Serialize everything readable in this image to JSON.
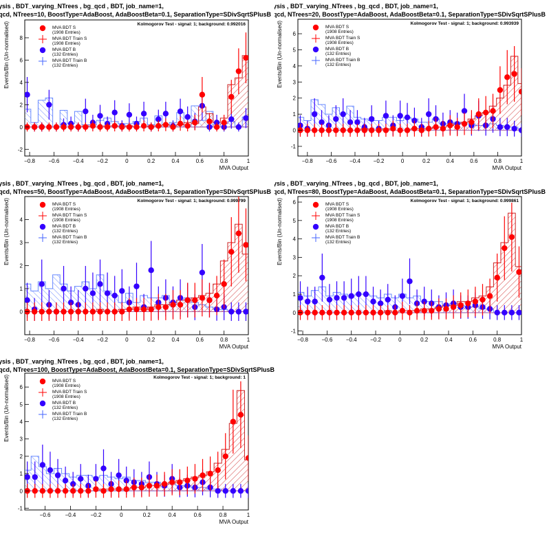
{
  "window": {
    "title_line1": "ysis ,  BDT_varying_NTrees ,  bg_qcd ,  BDT, job_name=1,",
    "title_line2_prefix": "qcd, NTrees=",
    "title_line2_suffix": ", BoostType=AdaBoost, AdaBoostBeta=0.1, SeparationType=SDivSqrtSPlusB"
  },
  "legend": {
    "items": [
      {
        "label": "MVA BDT S",
        "entries": "(1908 Entries)",
        "style": "dot",
        "color": "#ff0000"
      },
      {
        "label": "MVA BDT Train S",
        "entries": "(1908 Entries)",
        "style": "cross",
        "color": "#ff0000"
      },
      {
        "label": "MVA BDT B",
        "entries": "(132 Entries)",
        "style": "dot",
        "color": "#3300ff"
      },
      {
        "label": "MVA BDT Train B",
        "entries": "(132 Entries)",
        "style": "cross",
        "color": "#4466ff"
      }
    ]
  },
  "colors": {
    "signal": "#ff0000",
    "background": "#3300ff",
    "train_background": "#6688ff",
    "hatch_signal": "#cc2222",
    "hatch_background": "#5577ff"
  },
  "axis_labels": {
    "x": "MVA Output",
    "y": "Events/Bin (Un-normalised)"
  },
  "chart_data": [
    {
      "type": "histogram",
      "ntrees": "10",
      "ks_text": "Kolmogorov Test - signal: 1; background: 0.992016",
      "xlim": [
        -0.84,
        1.0
      ],
      "ylim": [
        -2.6,
        9.6
      ],
      "xticks": [
        -0.8,
        -0.6,
        -0.4,
        -0.2,
        0,
        0.2,
        0.4,
        0.6,
        0.8,
        1
      ],
      "yticks": [
        -2,
        0,
        2,
        4,
        6,
        8
      ],
      "x": [
        -0.82,
        -0.76,
        -0.7,
        -0.64,
        -0.58,
        -0.52,
        -0.46,
        -0.4,
        -0.34,
        -0.28,
        -0.22,
        -0.16,
        -0.1,
        -0.04,
        0.02,
        0.08,
        0.14,
        0.2,
        0.26,
        0.32,
        0.38,
        0.44,
        0.5,
        0.56,
        0.62,
        0.68,
        0.74,
        0.8,
        0.86,
        0.92,
        0.98
      ],
      "series": [
        {
          "name": "MVA BDT S",
          "values": [
            0,
            0,
            0,
            0,
            0,
            0,
            0,
            0,
            0,
            0.1,
            0,
            0,
            0.1,
            0,
            0,
            0,
            0.1,
            0,
            0.1,
            0.2,
            0,
            0.3,
            0.1,
            0.4,
            2.9,
            0.5,
            0,
            0.4,
            2.7,
            5.0,
            6.2
          ]
        },
        {
          "name": "MVA BDT B",
          "values": [
            2.9,
            0,
            0,
            2.0,
            0,
            0.2,
            0.3,
            0,
            1.4,
            0.4,
            1.0,
            0.3,
            1.3,
            0.1,
            1.1,
            0.3,
            1.2,
            0,
            0.7,
            1.2,
            0.1,
            1.4,
            0.9,
            0.5,
            1.9,
            0,
            0.4,
            0,
            0.7,
            0,
            0.8
          ]
        },
        {
          "name": "MVA BDT Train S",
          "values": [
            0,
            0,
            0,
            0,
            0,
            0,
            0,
            0,
            0.1,
            0,
            0,
            0.1,
            0.1,
            0,
            0.1,
            0,
            0,
            0.1,
            0.1,
            0.2,
            0.1,
            0.2,
            0.4,
            0.3,
            1.8,
            1.2,
            0.4,
            0.8,
            3.8,
            4.4,
            6.4
          ]
        },
        {
          "name": "MVA BDT Train B",
          "values": [
            1.6,
            0.4,
            2.4,
            2.6,
            0,
            1.5,
            0.3,
            1.4,
            0.2,
            0.2,
            0.6,
            0.8,
            0.5,
            0.3,
            0.3,
            0.5,
            0.8,
            0.2,
            1.0,
            0.2,
            0.4,
            1.3,
            0.1,
            1.9,
            0.6,
            1.4,
            0,
            0.3,
            0.5,
            0,
            0.9
          ]
        }
      ]
    },
    {
      "type": "histogram",
      "ntrees": "20",
      "ks_text": "Kolmogorov Test - signal: 1; background: 0.993939",
      "xlim": [
        -0.88,
        1.0
      ],
      "ylim": [
        -1.6,
        6.9
      ],
      "xticks": [
        -0.8,
        -0.6,
        -0.4,
        -0.2,
        0,
        0.2,
        0.4,
        0.6,
        0.8,
        1
      ],
      "yticks": [
        -1,
        0,
        1,
        2,
        3,
        4,
        5,
        6
      ],
      "x": [
        -0.86,
        -0.8,
        -0.74,
        -0.68,
        -0.62,
        -0.56,
        -0.5,
        -0.44,
        -0.38,
        -0.32,
        -0.26,
        -0.2,
        -0.14,
        -0.08,
        -0.02,
        0.04,
        0.1,
        0.16,
        0.22,
        0.28,
        0.34,
        0.4,
        0.46,
        0.52,
        0.58,
        0.64,
        0.7,
        0.76,
        0.82,
        0.88,
        0.94,
        1.0
      ],
      "series": [
        {
          "name": "MVA BDT S",
          "values": [
            0,
            0,
            0,
            0,
            0,
            0,
            0,
            0,
            0,
            0,
            0,
            0,
            0,
            0.1,
            0,
            0,
            0.1,
            0,
            0.1,
            0.2,
            0.1,
            0.3,
            0.2,
            0.4,
            0.5,
            1.0,
            1.1,
            1.2,
            2.5,
            3.3,
            3.5,
            2.4
          ]
        },
        {
          "name": "MVA BDT B",
          "values": [
            0.3,
            0.1,
            1.0,
            0.5,
            0.3,
            0.7,
            1.0,
            0.5,
            0.5,
            0.2,
            0.7,
            0.1,
            0.9,
            0.3,
            0.9,
            0.8,
            0.6,
            0.2,
            1.0,
            0.7,
            0.4,
            0.5,
            0.4,
            1.2,
            0.3,
            0.9,
            0.3,
            0.7,
            0.2,
            0.2,
            0.1,
            0
          ]
        },
        {
          "name": "MVA BDT Train S",
          "values": [
            0,
            0,
            0,
            0,
            0,
            0,
            0,
            0,
            0,
            0.1,
            0,
            0,
            0.1,
            0,
            0,
            0,
            0.1,
            0.1,
            0.1,
            0.2,
            0.2,
            0.3,
            0.4,
            0.5,
            0.7,
            0.9,
            1.1,
            1.5,
            2.0,
            2.8,
            4.6,
            2.9
          ]
        },
        {
          "name": "MVA BDT Train B",
          "values": [
            0.8,
            0.6,
            1.9,
            1.6,
            1.0,
            1.4,
            1.0,
            1.5,
            0.8,
            0.7,
            0.6,
            0.6,
            0.8,
            0.8,
            0.6,
            0.8,
            0.7,
            0.5,
            0.5,
            0.7,
            0.4,
            0.4,
            0.5,
            0.4,
            0.4,
            0.3,
            0.3,
            0.4,
            0.3,
            0.2,
            0.2,
            0.1
          ]
        }
      ]
    },
    {
      "type": "histogram",
      "ntrees": "50",
      "ks_text": "Kolmogorov Test - signal: 1; background: 0.999799",
      "xlim": [
        -0.84,
        1.0
      ],
      "ylim": [
        -1.0,
        5.0
      ],
      "xticks": [
        -0.8,
        -0.6,
        -0.4,
        -0.2,
        0,
        0.2,
        0.4,
        0.6,
        0.8,
        1
      ],
      "yticks": [
        0,
        1,
        2,
        3,
        4
      ],
      "x": [
        -0.82,
        -0.76,
        -0.7,
        -0.64,
        -0.58,
        -0.52,
        -0.46,
        -0.4,
        -0.34,
        -0.28,
        -0.22,
        -0.16,
        -0.1,
        -0.04,
        0.02,
        0.08,
        0.14,
        0.2,
        0.26,
        0.32,
        0.38,
        0.44,
        0.5,
        0.56,
        0.62,
        0.68,
        0.74,
        0.8,
        0.86,
        0.92,
        0.98
      ],
      "series": [
        {
          "name": "MVA BDT S",
          "values": [
            0,
            0,
            0,
            0,
            0,
            0,
            0,
            0,
            0,
            0,
            0,
            0,
            0,
            0,
            0.1,
            0.1,
            0.1,
            0.1,
            0.2,
            0.2,
            0.3,
            0.3,
            0.5,
            0.5,
            0.6,
            0.5,
            0.7,
            1.2,
            2.6,
            3.4,
            2.9
          ]
        },
        {
          "name": "MVA BDT B",
          "values": [
            0.5,
            0.1,
            1.2,
            0.3,
            0,
            1.0,
            0.4,
            0.3,
            1.0,
            0.8,
            1.2,
            0.8,
            0.7,
            0.9,
            0.4,
            1.1,
            0.2,
            1.8,
            0.4,
            0.6,
            0.4,
            0.6,
            0.5,
            0.2,
            1.7,
            0.5,
            0.1,
            0.2,
            0,
            0,
            0
          ]
        },
        {
          "name": "MVA BDT Train S",
          "values": [
            0,
            0,
            0,
            0,
            0,
            0,
            0,
            0,
            0,
            0,
            0.1,
            0,
            0,
            0.1,
            0.1,
            0.2,
            0.1,
            0.2,
            0.3,
            0.3,
            0.4,
            0.5,
            0.5,
            0.6,
            0.7,
            0.8,
            1.2,
            2.2,
            3.0,
            3.8,
            2.5
          ]
        },
        {
          "name": "MVA BDT Train B",
          "values": [
            1.2,
            0.9,
            1.3,
            1.0,
            1.6,
            1.2,
            0.9,
            1.1,
            1.3,
            1.0,
            1.6,
            0.9,
            0.7,
            0.4,
            0.8,
            0.4,
            0.7,
            0.6,
            0.6,
            0.7,
            0.3,
            0.5,
            0.6,
            0.4,
            0.3,
            0.2,
            0.1,
            0.1,
            0,
            0,
            0
          ]
        }
      ]
    },
    {
      "type": "histogram",
      "ntrees": "80",
      "ks_text": "Kolmogorov Test - signal: 1; background: 0.999861",
      "xlim": [
        -0.84,
        1.0
      ],
      "ylim": [
        -1.2,
        6.3
      ],
      "xticks": [
        -0.8,
        -0.6,
        -0.4,
        -0.2,
        0,
        0.2,
        0.4,
        0.6,
        0.8,
        1
      ],
      "yticks": [
        -1,
        0,
        1,
        2,
        3,
        4,
        5,
        6
      ],
      "x": [
        -0.82,
        -0.76,
        -0.7,
        -0.64,
        -0.58,
        -0.52,
        -0.46,
        -0.4,
        -0.34,
        -0.28,
        -0.22,
        -0.16,
        -0.1,
        -0.04,
        0.02,
        0.08,
        0.14,
        0.2,
        0.26,
        0.32,
        0.38,
        0.44,
        0.5,
        0.56,
        0.62,
        0.68,
        0.74,
        0.8,
        0.86,
        0.92,
        0.98
      ],
      "series": [
        {
          "name": "MVA BDT S",
          "values": [
            0,
            0,
            0,
            0,
            0,
            0,
            0,
            0,
            0,
            0,
            0,
            0,
            0,
            0,
            0.1,
            0,
            0.1,
            0.1,
            0.1,
            0.2,
            0.2,
            0.3,
            0.4,
            0.5,
            0.6,
            0.7,
            0.9,
            1.9,
            3.5,
            4.1,
            2.2
          ]
        },
        {
          "name": "MVA BDT B",
          "values": [
            0.8,
            0.6,
            0.6,
            1.9,
            0.7,
            0.8,
            0.8,
            0.9,
            1.0,
            1.0,
            0.6,
            0.5,
            0.7,
            0.3,
            0.9,
            1.7,
            0.5,
            0.6,
            0.5,
            0.3,
            0.4,
            0.5,
            0.3,
            0.3,
            0.4,
            0.3,
            0.2,
            0,
            0,
            0,
            0
          ]
        },
        {
          "name": "MVA BDT Train S",
          "values": [
            0,
            0,
            0,
            0,
            0,
            0,
            0,
            0,
            0,
            0,
            0,
            0,
            0.1,
            0,
            0.1,
            0.1,
            0.1,
            0.2,
            0.2,
            0.3,
            0.4,
            0.4,
            0.6,
            0.6,
            0.8,
            0.9,
            1.4,
            2.7,
            3.8,
            5.4,
            2.5
          ]
        },
        {
          "name": "MVA BDT Train B",
          "values": [
            1.1,
            0.9,
            1.2,
            1.4,
            0.9,
            1.1,
            1.0,
            0.9,
            1.0,
            1.0,
            0.9,
            0.8,
            1.0,
            0.8,
            1.0,
            0.8,
            0.9,
            0.6,
            0.6,
            0.6,
            0.4,
            0.5,
            0.4,
            0.3,
            0.3,
            0.2,
            0.2,
            0,
            0,
            0,
            0
          ]
        }
      ]
    },
    {
      "type": "histogram",
      "ntrees": "100",
      "ks_text": "Kolmogorov Test - signal: 1; background: 1",
      "xlim": [
        -0.76,
        1.0
      ],
      "ylim": [
        -1.1,
        6.8
      ],
      "xticks": [
        -0.6,
        -0.4,
        -0.2,
        0,
        0.2,
        0.4,
        0.6,
        0.8,
        1
      ],
      "yticks": [
        -1,
        0,
        1,
        2,
        3,
        4,
        5,
        6
      ],
      "x": [
        -0.74,
        -0.68,
        -0.62,
        -0.56,
        -0.5,
        -0.44,
        -0.38,
        -0.32,
        -0.26,
        -0.2,
        -0.14,
        -0.08,
        -0.02,
        0.04,
        0.1,
        0.16,
        0.22,
        0.28,
        0.34,
        0.4,
        0.46,
        0.52,
        0.58,
        0.64,
        0.7,
        0.76,
        0.82,
        0.88,
        0.94,
        1.0
      ],
      "series": [
        {
          "name": "MVA BDT S",
          "values": [
            0,
            0,
            0,
            0,
            0,
            0,
            0,
            0,
            0,
            0.1,
            0,
            0.1,
            0.1,
            0.1,
            0.2,
            0.2,
            0.3,
            0.3,
            0.4,
            0.5,
            0.5,
            0.6,
            0.7,
            0.9,
            1.0,
            1.2,
            2.0,
            4.0,
            4.4,
            1.9
          ]
        },
        {
          "name": "MVA BDT B",
          "values": [
            0.8,
            0.8,
            1.5,
            1.2,
            0.9,
            0.6,
            0.4,
            0.7,
            0.3,
            0.7,
            1.3,
            0.4,
            0.9,
            0.6,
            0.5,
            0.4,
            0.8,
            0.4,
            0.3,
            0.7,
            0.2,
            0.3,
            0.2,
            0.5,
            0.2,
            0,
            0,
            0,
            0,
            0
          ]
        },
        {
          "name": "MVA BDT Train S",
          "values": [
            0,
            0,
            0,
            0,
            0,
            0,
            0,
            0,
            0,
            0,
            0.1,
            0.1,
            0.1,
            0.1,
            0.2,
            0.2,
            0.3,
            0.3,
            0.4,
            0.5,
            0.6,
            0.7,
            0.8,
            0.9,
            1.1,
            1.6,
            2.4,
            3.9,
            5.8,
            1.8
          ]
        },
        {
          "name": "MVA BDT Train B",
          "values": [
            1.2,
            2.0,
            1.4,
            1.0,
            1.3,
            1.0,
            0.8,
            0.9,
            0.9,
            0.8,
            0.9,
            0.8,
            0.7,
            0.8,
            0.6,
            0.6,
            0.5,
            0.5,
            0.4,
            0.4,
            0.3,
            0.3,
            0.2,
            0.2,
            0.1,
            0.1,
            0,
            0,
            0,
            0
          ]
        }
      ]
    }
  ]
}
